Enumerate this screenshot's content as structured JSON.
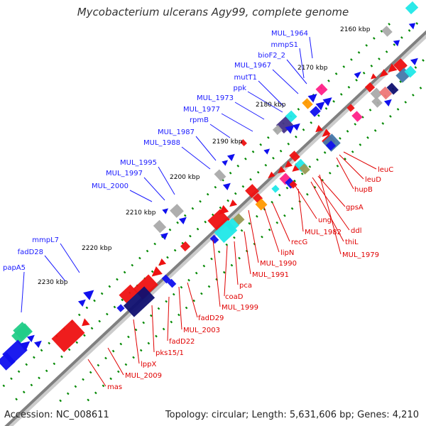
{
  "title": "Mycobacterium ulcerans Agy99, complete genome",
  "footer": {
    "accession": "Accession: NC_008611",
    "summary": "Topology: circular; Length: 5,631,606 bp; Genes: 4,210"
  },
  "colors": {
    "backbone": "#888888",
    "forward_label": "#1a1aff",
    "reverse_label": "#e00000",
    "tick": "#008800",
    "gene_blue": "#1010ee",
    "gene_red": "#ee1111",
    "gene_navy": "#101070",
    "gene_cyan": "#20e8e8",
    "gene_green": "#22cc88",
    "gene_pink": "#ff2288",
    "gene_orange": "#ff9900",
    "gene_grey": "#aaaaaa",
    "gene_steel": "#4477aa",
    "gene_olive": "#999955",
    "gene_purple": "#443388",
    "gene_salmon": "#ee7777"
  },
  "kbp_ticks": [
    "2160 kbp",
    "2170 kbp",
    "2180 kbp",
    "2190 kbp",
    "2200 kbp",
    "2210 kbp",
    "2220 kbp",
    "2230 kbp"
  ],
  "forward_labels": [
    "MUL_1964",
    "mmpS1",
    "bioF2_2",
    "MUL_1967",
    "mutT1",
    "ppk",
    "MUL_1973",
    "MUL_1977",
    "rpmB",
    "MUL_1987",
    "MUL_1988",
    "MUL_1995",
    "MUL_1997",
    "MUL_2000",
    "mmpL7",
    "fadD28",
    "papA5"
  ],
  "reverse_labels": [
    "leuC",
    "leuD",
    "hupB",
    "gpsA",
    "ung",
    "ddl",
    "MUL_1982",
    "thiL",
    "MUL_1979",
    "recG",
    "lipN",
    "MUL_1990",
    "MUL_1991",
    "pca",
    "coaD",
    "MUL_1999",
    "fadD29",
    "MUL_2003",
    "fadD22",
    "pks15/1",
    "lppX",
    "MUL_2009",
    "mas"
  ]
}
